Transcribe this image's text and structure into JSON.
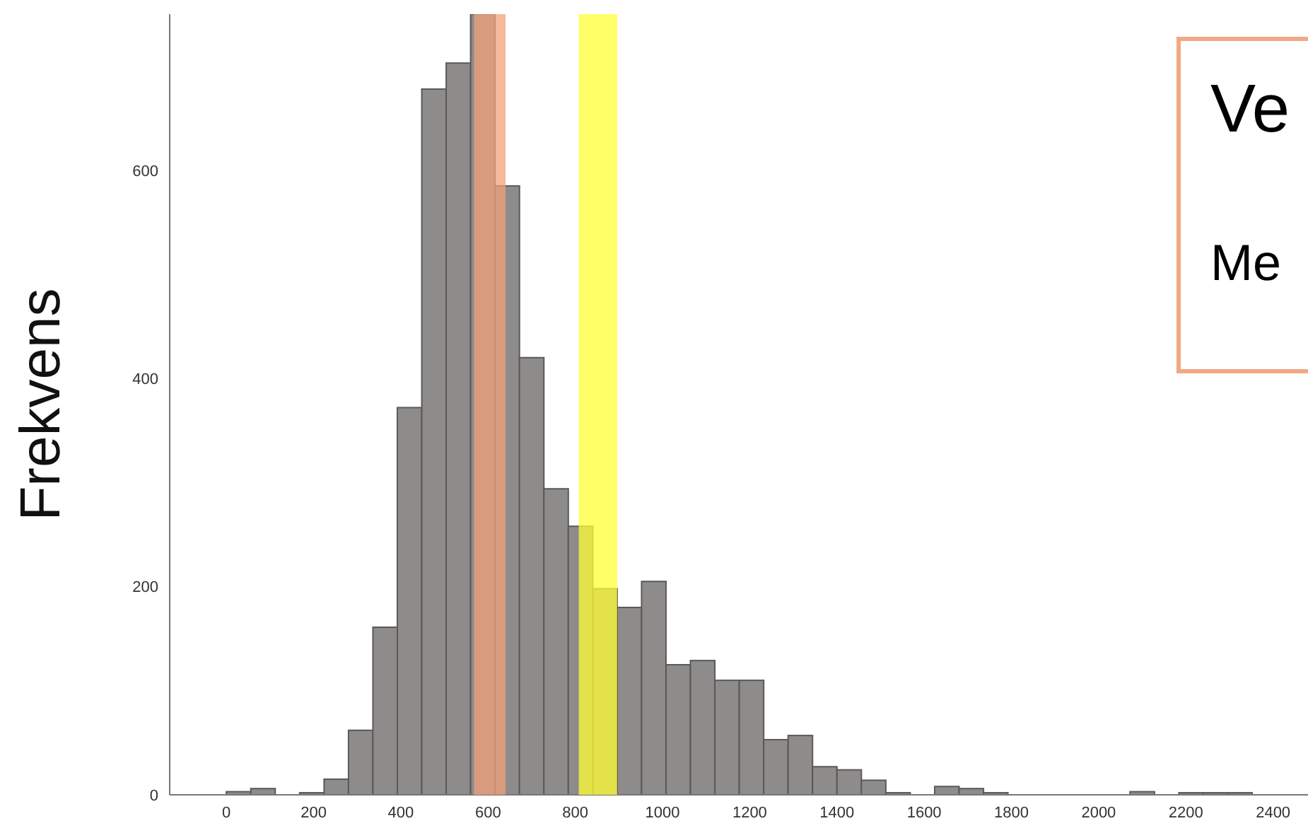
{
  "chart_data": {
    "type": "histogram",
    "ylabel": "Frekvens",
    "bins": [
      0,
      56,
      112,
      168,
      224,
      280,
      336,
      392,
      448,
      504,
      560,
      616,
      672,
      728,
      784,
      840,
      896,
      952,
      1008,
      1064,
      1120,
      1176,
      1232,
      1288,
      1344,
      1400,
      1456,
      1512,
      1568,
      1624,
      1680,
      1736,
      1792,
      1848,
      1904,
      1960,
      2016,
      2072,
      2128,
      2184,
      2240,
      2296,
      2352
    ],
    "values": [
      3,
      6,
      0,
      2,
      15,
      62,
      161,
      372,
      678,
      703,
      750,
      585,
      420,
      294,
      258,
      198,
      180,
      205,
      125,
      129,
      110,
      110,
      53,
      57,
      27,
      24,
      14,
      2,
      null,
      8,
      6,
      2,
      0,
      0,
      0,
      0,
      0,
      3,
      0,
      2,
      2,
      2
    ],
    "color": "#8e8b8b",
    "xlim": [
      -130,
      2480
    ],
    "ylim": [
      0,
      750
    ],
    "xticks": [
      0,
      200,
      400,
      600,
      800,
      1000,
      1200,
      1400,
      1600,
      1800,
      2000,
      2200,
      2400
    ],
    "yticks": [
      0,
      200,
      400,
      600
    ],
    "bands": [
      {
        "axis": "x",
        "from": 568,
        "to": 640,
        "color": "#f2a07a"
      },
      {
        "axis": "x",
        "from": 808,
        "to": 896,
        "color": "#ffff33"
      }
    ],
    "annotations": [
      "Ve",
      "Me"
    ]
  }
}
